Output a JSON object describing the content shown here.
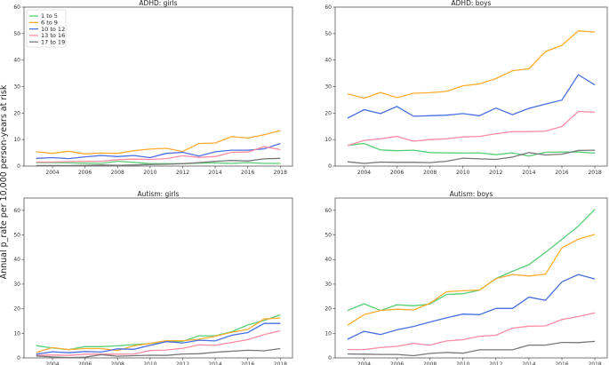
{
  "chart_data": [
    {
      "type": "line",
      "title": "ADHD: girls",
      "ylim": [
        0,
        60
      ],
      "xlim": [
        2002.25,
        2018.75
      ],
      "grid": false,
      "legend": "top-left",
      "x": [
        2003,
        2004,
        2005,
        2006,
        2007,
        2008,
        2009,
        2010,
        2011,
        2012,
        2013,
        2014,
        2015,
        2016,
        2017,
        2018
      ],
      "series": [
        {
          "name": "1 to 5",
          "color": "#58cf77",
          "values": [
            1.3,
            1.3,
            1.2,
            1.1,
            1.0,
            1.8,
            1.4,
            0.9,
            0.9,
            0.9,
            1.1,
            1.2,
            1.0,
            1.3,
            1.0,
            1.0
          ]
        },
        {
          "name": "6 to 9",
          "color": "#ffab2e",
          "values": [
            5.4,
            4.8,
            5.6,
            4.6,
            4.9,
            4.8,
            5.8,
            6.4,
            6.7,
            5.5,
            8.5,
            8.7,
            11.1,
            10.6,
            11.8,
            13.4
          ]
        },
        {
          "name": "10 to 12",
          "color": "#4a6fe3",
          "values": [
            2.9,
            3.2,
            2.8,
            3.5,
            4.0,
            3.6,
            4.0,
            3.2,
            4.8,
            5.2,
            3.8,
            5.4,
            6.0,
            6.0,
            6.5,
            8.5
          ]
        },
        {
          "name": "13 to 16",
          "color": "#ff8ca3",
          "values": [
            1.5,
            1.5,
            1.7,
            1.8,
            1.8,
            2.4,
            2.6,
            2.5,
            2.8,
            3.9,
            3.3,
            3.6,
            5.2,
            5.3,
            7.3,
            6.2
          ]
        },
        {
          "name": "17 to 19",
          "color": "#777777",
          "values": [
            0.2,
            0.2,
            0.2,
            0.3,
            0.4,
            0.3,
            0.4,
            0.6,
            0.7,
            0.9,
            1.3,
            1.8,
            2.1,
            1.9,
            2.7,
            2.9
          ]
        }
      ]
    },
    {
      "type": "line",
      "title": "ADHD: boys",
      "ylim": [
        0,
        60
      ],
      "xlim": [
        2002.25,
        2018.75
      ],
      "grid": false,
      "x": [
        2003,
        2004,
        2005,
        2006,
        2007,
        2008,
        2009,
        2010,
        2011,
        2012,
        2013,
        2014,
        2015,
        2016,
        2017,
        2018
      ],
      "series": [
        {
          "color": "#58cf77",
          "values": [
            7.8,
            8.5,
            6.1,
            5.8,
            6.0,
            5.1,
            5.0,
            4.9,
            5.0,
            4.3,
            5.0,
            3.8,
            5.2,
            5.3,
            5.3,
            4.9
          ]
        },
        {
          "color": "#ffab2e",
          "values": [
            27.3,
            25.6,
            27.8,
            25.8,
            27.5,
            27.7,
            28.2,
            30.3,
            31.0,
            33.0,
            36.0,
            36.7,
            43.2,
            45.6,
            51.0,
            50.6
          ]
        },
        {
          "color": "#4a6fe3",
          "values": [
            18.1,
            21.3,
            19.8,
            22.5,
            18.8,
            19.0,
            19.2,
            19.8,
            19.0,
            21.9,
            19.4,
            21.8,
            23.4,
            24.9,
            34.5,
            30.6
          ]
        },
        {
          "color": "#ff8ca3",
          "values": [
            7.7,
            9.7,
            10.3,
            11.2,
            9.4,
            10.0,
            10.3,
            11.0,
            11.2,
            12.2,
            13.0,
            13.0,
            13.2,
            14.9,
            20.6,
            20.3
          ]
        },
        {
          "color": "#777777",
          "values": [
            1.6,
            1.0,
            1.5,
            1.4,
            1.4,
            1.3,
            1.8,
            3.0,
            2.7,
            2.5,
            3.4,
            5.1,
            4.2,
            4.5,
            5.9,
            6.0
          ]
        }
      ]
    },
    {
      "type": "line",
      "title": "Autism: girls",
      "ylim": [
        0,
        65
      ],
      "xlim": [
        2002.25,
        2018.75
      ],
      "grid": false,
      "x": [
        2003,
        2004,
        2005,
        2006,
        2007,
        2008,
        2009,
        2010,
        2011,
        2012,
        2013,
        2014,
        2015,
        2016,
        2017,
        2018
      ],
      "series": [
        {
          "color": "#58cf77",
          "values": [
            5.0,
            4.0,
            3.4,
            4.6,
            4.6,
            4.9,
            5.4,
            5.8,
            6.6,
            6.7,
            9.0,
            9.0,
            10.6,
            13.4,
            15.2,
            17.5
          ]
        },
        {
          "color": "#ffab2e",
          "values": [
            2.2,
            4.2,
            3.4,
            3.8,
            3.8,
            3.0,
            4.9,
            5.9,
            7.0,
            7.0,
            7.6,
            8.8,
            10.4,
            11.6,
            15.8,
            16.2
          ]
        },
        {
          "color": "#4a6fe3",
          "values": [
            1.5,
            2.5,
            2.1,
            2.6,
            2.4,
            3.7,
            3.5,
            5.1,
            6.6,
            6.1,
            7.2,
            6.9,
            9.2,
            10.3,
            14.0,
            14.0
          ]
        },
        {
          "color": "#ff8ca3",
          "values": [
            1.0,
            1.2,
            1.0,
            1.5,
            1.5,
            1.5,
            1.6,
            3.0,
            3.2,
            3.9,
            5.3,
            5.1,
            6.3,
            7.4,
            9.5,
            11.0
          ]
        },
        {
          "color": "#777777",
          "values": [
            0.8,
            0.4,
            0.1,
            0.3,
            1.3,
            0.7,
            0.9,
            1.1,
            1.0,
            1.6,
            1.7,
            2.3,
            2.7,
            3.1,
            2.9,
            3.8
          ]
        }
      ]
    },
    {
      "type": "line",
      "title": "Autism: boys",
      "ylim": [
        0,
        65
      ],
      "xlim": [
        2002.25,
        2018.75
      ],
      "grid": false,
      "x": [
        2003,
        2004,
        2005,
        2006,
        2007,
        2008,
        2009,
        2010,
        2011,
        2012,
        2013,
        2014,
        2015,
        2016,
        2017,
        2018
      ],
      "series": [
        {
          "color": "#58cf77",
          "values": [
            19.3,
            22.0,
            19.3,
            21.6,
            21.2,
            21.9,
            25.8,
            26.1,
            27.5,
            32.3,
            35.2,
            37.9,
            42.9,
            48.2,
            53.6,
            60.4
          ]
        },
        {
          "color": "#ffab2e",
          "values": [
            13.3,
            17.6,
            19.3,
            19.8,
            19.5,
            22.2,
            26.9,
            27.3,
            27.6,
            32.2,
            33.9,
            33.3,
            34.0,
            44.7,
            48.3,
            50.2
          ]
        },
        {
          "color": "#4a6fe3",
          "values": [
            7.6,
            10.8,
            9.5,
            11.4,
            12.8,
            14.6,
            16.3,
            17.8,
            17.6,
            20.1,
            20.1,
            24.7,
            23.4,
            30.9,
            33.9,
            32.1
          ]
        },
        {
          "color": "#ff8ca3",
          "values": [
            3.4,
            3.4,
            4.2,
            4.7,
            5.9,
            5.2,
            6.9,
            7.4,
            8.8,
            9.2,
            12.1,
            12.9,
            13.0,
            15.6,
            16.8,
            18.3
          ]
        },
        {
          "color": "#777777",
          "values": [
            1.6,
            1.5,
            1.4,
            1.4,
            0.9,
            1.8,
            2.2,
            1.9,
            3.3,
            3.3,
            3.3,
            5.2,
            5.2,
            6.3,
            6.2,
            6.7
          ]
        }
      ]
    }
  ],
  "ylabel": "Annual p_rate per 10,000 person-years at risk",
  "xticks": [
    2004,
    2006,
    2008,
    2010,
    2012,
    2014,
    2016,
    2018
  ],
  "yticks": [
    0,
    10,
    20,
    30,
    40,
    50,
    60
  ]
}
